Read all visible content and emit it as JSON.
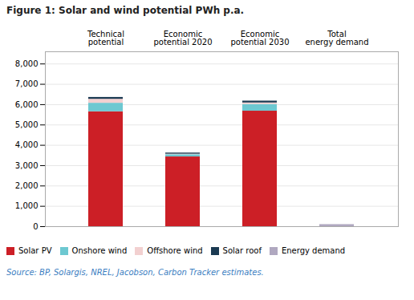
{
  "chart_data": {
    "type": "bar",
    "stacked": true,
    "title": "Figure 1: Solar and wind potential PWh p.a.",
    "source": "Source:  BP, Solargis, NREL, Jacobson, Carbon Tracker estimates.",
    "categories": [
      "Technical\npotential",
      "Economic\npotential 2020",
      "Economic\npotential 2030",
      "Total\nenergy demand"
    ],
    "series": [
      {
        "name": "Solar PV",
        "color": "#cc1f26",
        "values": [
          5650,
          3430,
          5680,
          0
        ]
      },
      {
        "name": "Onshore wind",
        "color": "#6dc8d1",
        "values": [
          420,
          110,
          330,
          0
        ]
      },
      {
        "name": "Offshore wind",
        "color": "#f2d0d0",
        "values": [
          195,
          25,
          75,
          0
        ]
      },
      {
        "name": "Solar roof",
        "color": "#1b3a52",
        "values": [
          90,
          55,
          90,
          0
        ]
      },
      {
        "name": "Energy demand",
        "color": "#b0a8c0",
        "values": [
          0,
          0,
          0,
          100
        ]
      }
    ],
    "ylim": [
      0,
      8600
    ],
    "yticks": [
      0,
      {
        "value": 1000,
        "label": "1,000"
      },
      {
        "value": 2000,
        "label": "2,000"
      },
      {
        "value": 3000,
        "label": "3,000"
      },
      {
        "value": 4000,
        "label": "4,000"
      },
      {
        "value": 5000,
        "label": "5,000"
      },
      {
        "value": 6000,
        "label": "6,000"
      },
      {
        "value": 7000,
        "label": "7,000"
      },
      {
        "value": 8000,
        "label": "8,000"
      }
    ],
    "grid": true,
    "legend": "bottom"
  }
}
